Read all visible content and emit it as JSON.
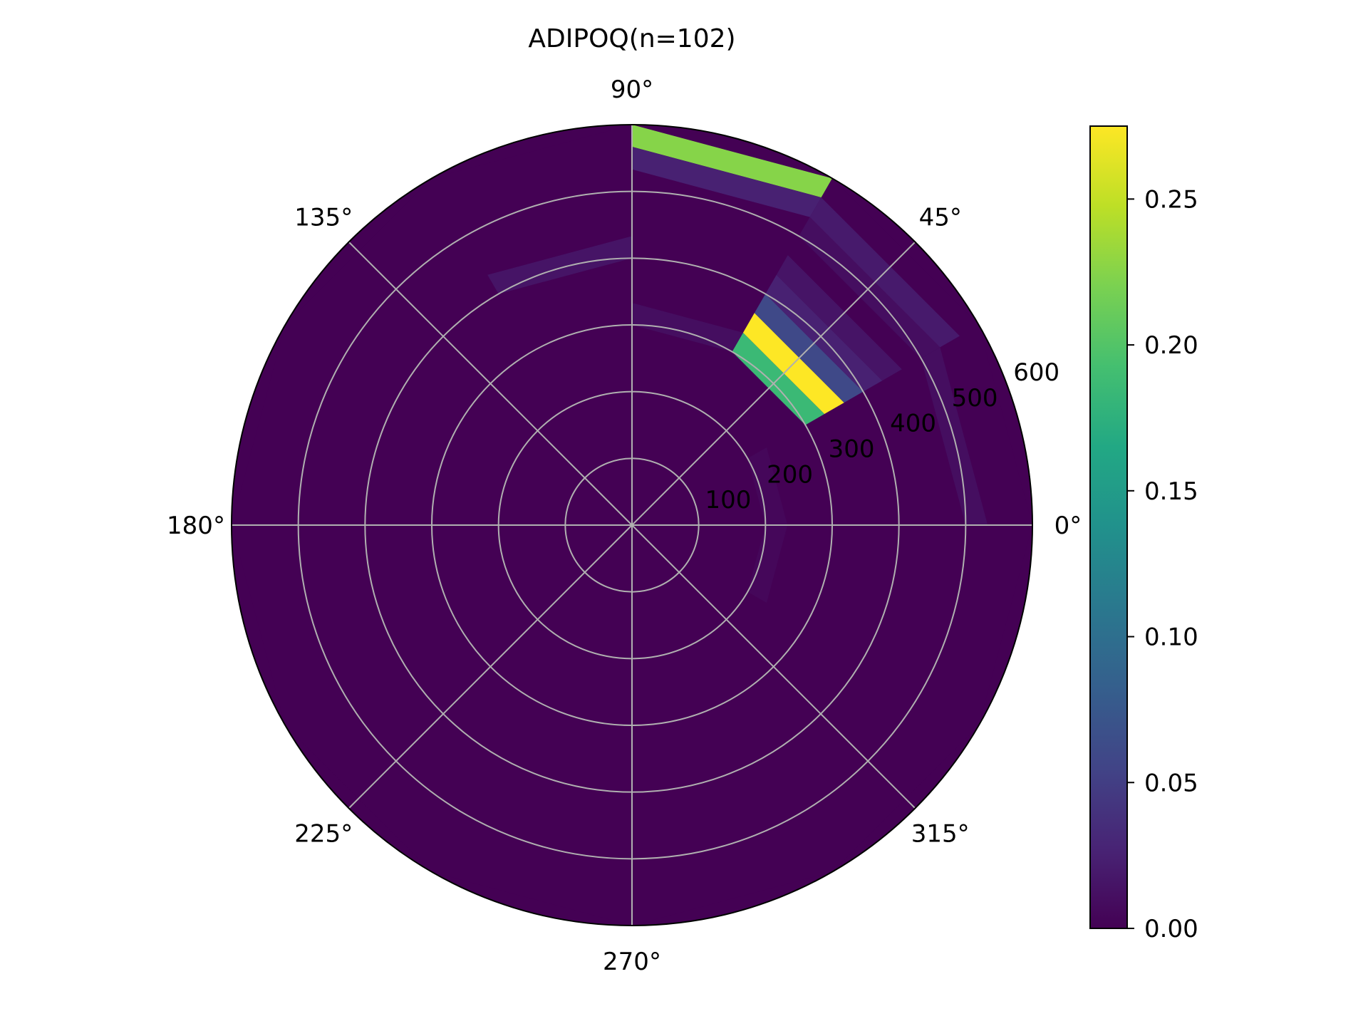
{
  "chart_data": {
    "type": "heatmap",
    "projection": "polar",
    "title": "ADIPOQ(n=102)",
    "theta_tick_labels": [
      "0°",
      "45°",
      "90°",
      "135°",
      "180°",
      "225°",
      "270°",
      "315°"
    ],
    "theta_ticks_deg": [
      0,
      45,
      90,
      135,
      180,
      225,
      270,
      315
    ],
    "r_tick_labels": [
      "100",
      "200",
      "300",
      "400",
      "500",
      "600"
    ],
    "r_ticks": [
      100,
      200,
      300,
      400,
      500,
      600
    ],
    "rlim": [
      0,
      600
    ],
    "grid": true,
    "colormap": "viridis",
    "colorbar": {
      "location": "right",
      "tick_labels": [
        "0.00",
        "0.05",
        "0.10",
        "0.15",
        "0.20",
        "0.25"
      ],
      "ticks": [
        0.0,
        0.05,
        0.1,
        0.15,
        0.2,
        0.25
      ],
      "vmin": 0.0,
      "vmax": 0.275
    },
    "theta_bins_deg": [
      0,
      30,
      60,
      90,
      120,
      150,
      180,
      210,
      240,
      270,
      300,
      330,
      360
    ],
    "r_bins": [
      0,
      100,
      200,
      300,
      400,
      500,
      600
    ],
    "cells": [
      {
        "theta": [
          30,
          60
        ],
        "r": [
          300,
          333
        ],
        "value": 0.185
      },
      {
        "theta": [
          30,
          60
        ],
        "r": [
          333,
          367
        ],
        "value": 0.275
      },
      {
        "theta": [
          30,
          60
        ],
        "r": [
          367,
          400
        ],
        "value": 0.06
      },
      {
        "theta": [
          30,
          60
        ],
        "r": [
          400,
          433
        ],
        "value": 0.025
      },
      {
        "theta": [
          30,
          60
        ],
        "r": [
          433,
          467
        ],
        "value": 0.015
      },
      {
        "theta": [
          30,
          60
        ],
        "r": [
          500,
          533
        ],
        "value": 0.01
      },
      {
        "theta": [
          30,
          60
        ],
        "r": [
          533,
          567
        ],
        "value": 0.02
      },
      {
        "theta": [
          60,
          90
        ],
        "r": [
          567,
          600
        ],
        "value": 0.225
      },
      {
        "theta": [
          60,
          90
        ],
        "r": [
          533,
          567
        ],
        "value": 0.025
      },
      {
        "theta": [
          60,
          90
        ],
        "r": [
          300,
          333
        ],
        "value": 0.01
      },
      {
        "theta": [
          90,
          120
        ],
        "r": [
          400,
          433
        ],
        "value": 0.015
      },
      {
        "theta": [
          0,
          30
        ],
        "r": [
          500,
          533
        ],
        "value": 0.01
      },
      {
        "theta": [
          0,
          30
        ],
        "r": [
          200,
          233
        ],
        "value": 0.005
      },
      {
        "theta": [
          330,
          360
        ],
        "r": [
          200,
          233
        ],
        "value": 0.005
      }
    ]
  }
}
